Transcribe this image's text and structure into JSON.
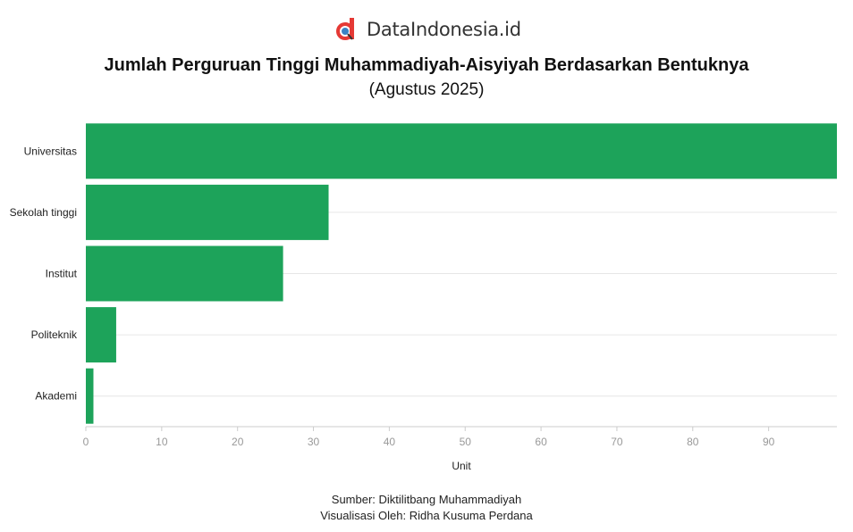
{
  "brand": {
    "name": "DataIndonesia.id",
    "accent": "#e53935"
  },
  "chart_data": {
    "type": "bar",
    "orientation": "horizontal",
    "title": "Jumlah Perguruan Tinggi Muhammadiyah-Aisyiyah Berdasarkan Bentuknya",
    "subtitle": "(Agustus 2025)",
    "categories": [
      "Universitas",
      "Sekolah tinggi",
      "Institut",
      "Politeknik",
      "Akademi"
    ],
    "values": [
      99,
      32,
      26,
      4,
      1
    ],
    "xlabel": "Unit",
    "ylabel": "",
    "xlim": [
      0,
      99
    ],
    "xticks": [
      0,
      10,
      20,
      30,
      40,
      50,
      60,
      70,
      80,
      90
    ],
    "grid": true,
    "bar_color": "#1da35a"
  },
  "footer": {
    "source": "Sumber: Diktilitbang Muhammadiyah",
    "credit": "Visualisasi Oleh: Ridha Kusuma Perdana"
  }
}
